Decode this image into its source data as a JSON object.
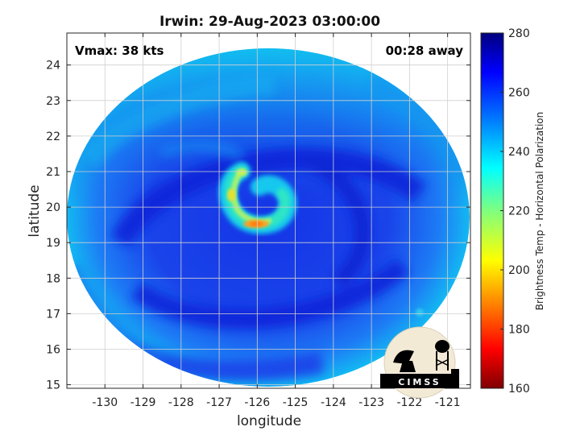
{
  "chart_data": {
    "type": "heatmap",
    "title": "Irwin: 29-Aug-2023 03:00:00",
    "xlabel": "longitude",
    "ylabel": "latitude",
    "xlim": [
      -131,
      -120.4
    ],
    "ylim": [
      14.9,
      24.9
    ],
    "xticks": [
      -130,
      -129,
      -128,
      -127,
      -126,
      -125,
      -124,
      -123,
      -122,
      -121
    ],
    "yticks": [
      15,
      16,
      17,
      18,
      19,
      20,
      21,
      22,
      23,
      24
    ],
    "grid": true,
    "colorbar": {
      "label": "Brightness Temp - Horizontal Polarization",
      "range": [
        160,
        280
      ],
      "ticks": [
        160,
        180,
        200,
        220,
        240,
        260,
        280
      ]
    },
    "annotations": {
      "vmax": "Vmax: 38 kts",
      "away": "00:28 away"
    },
    "field": {
      "swath_center": [
        -125.7,
        19.6
      ],
      "background_temp": 262,
      "outer_edge_temp": 238,
      "center": [
        -126.0,
        19.9
      ],
      "core_min_temp": 196,
      "warm_spot": {
        "lon": -121.5,
        "lat": 16.9,
        "temp": 236
      }
    },
    "logo": "CIMSS"
  }
}
